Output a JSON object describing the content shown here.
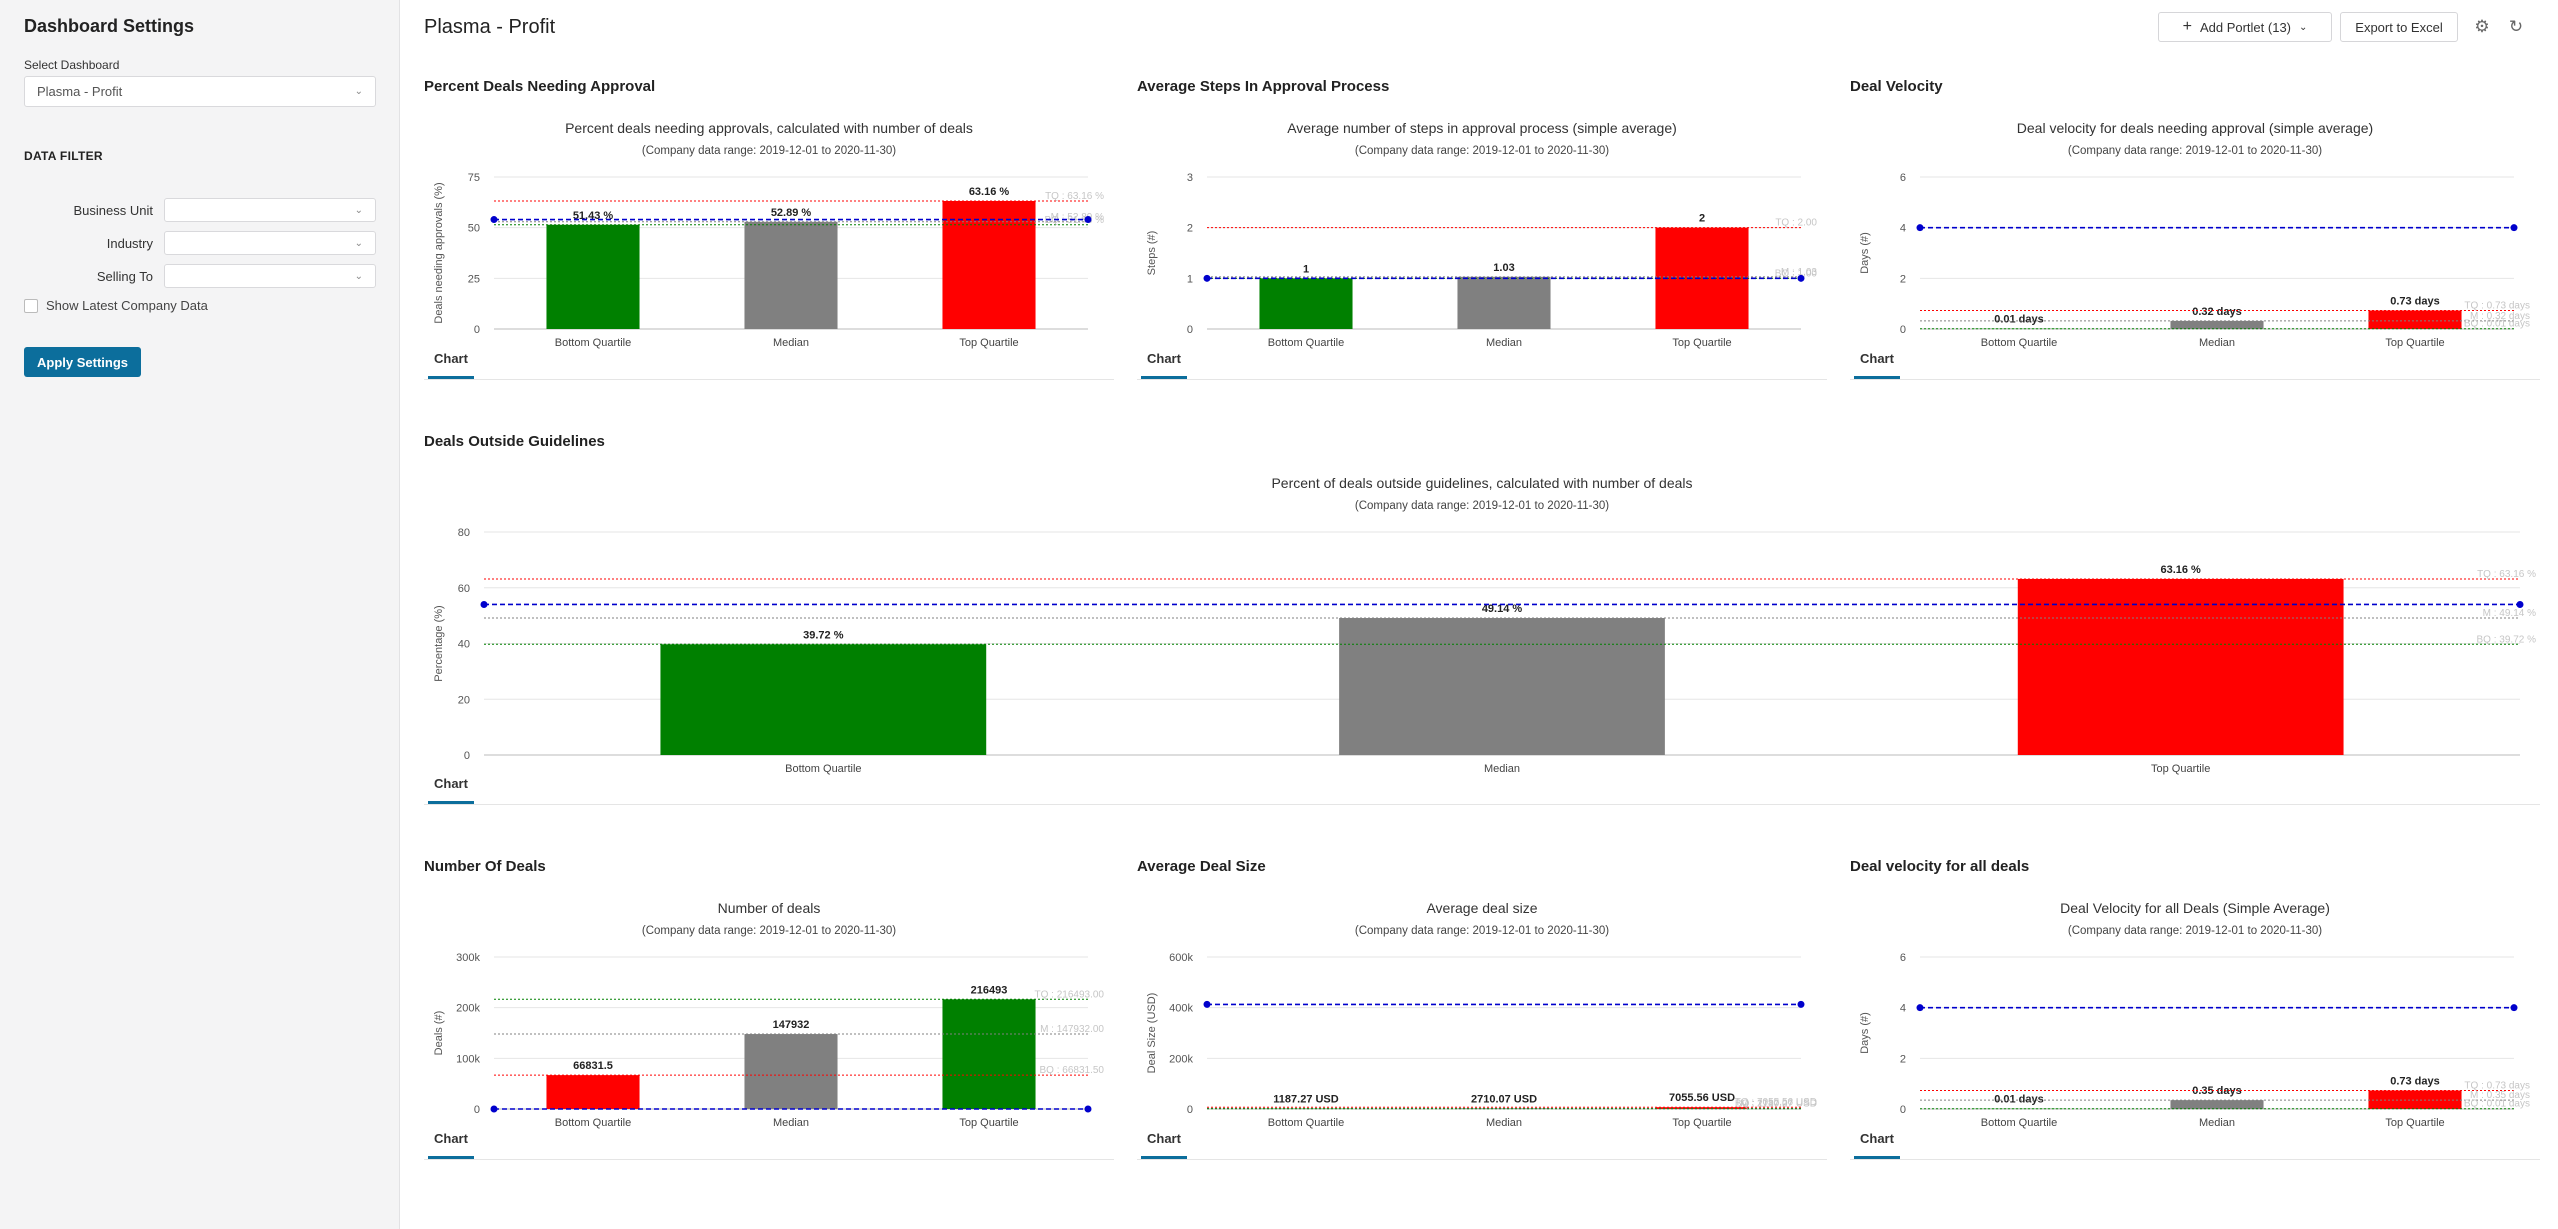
{
  "sidebar": {
    "title": "Dashboard Settings",
    "select_label": "Select Dashboard",
    "select_value": "Plasma - Profit",
    "data_filter_title": "DATA FILTER",
    "filters": [
      {
        "label": "Business Unit",
        "value": ""
      },
      {
        "label": "Industry",
        "value": ""
      },
      {
        "label": "Selling To",
        "value": ""
      }
    ],
    "show_latest_label": "Show Latest Company Data",
    "apply_label": "Apply Settings"
  },
  "header": {
    "title": "Plasma - Profit",
    "add_portlet_label": "Add Portlet (13)",
    "export_label": "Export to Excel",
    "settings_icon": "gear-icon",
    "refresh_icon": "refresh-icon"
  },
  "colors": {
    "green": "#008000",
    "gray": "#808080",
    "red": "#ff0000",
    "blue": "#0000cc"
  },
  "tab_label": "Chart",
  "chart_data": [
    {
      "id": "p1",
      "type": "bar",
      "portlet_title": "Percent Deals Needing Approval",
      "title": "Percent deals needing approvals, calculated with number of deals",
      "subtitle": "(Company data range: 2019-12-01 to 2020-11-30)",
      "ylabel": "Deals needing approvals (%)",
      "ylim": [
        0,
        75
      ],
      "yticks": [
        0,
        25,
        50,
        75
      ],
      "ytick_labels": [
        "0",
        "25",
        "50",
        "75"
      ],
      "categories": [
        "Bottom Quartile",
        "Median",
        "Top Quartile"
      ],
      "values": [
        51.43,
        52.89,
        63.16
      ],
      "value_labels": [
        "51.43 %",
        "52.89 %",
        "63.16 %"
      ],
      "bar_colors": [
        "#008000",
        "#808080",
        "#ff0000"
      ],
      "company": 54.0,
      "ref_lines": [
        {
          "value": 63.16,
          "color": "#ff0000",
          "label": "TQ : 63.16 %"
        },
        {
          "value": 52.89,
          "color": "#808080",
          "label": "M : 52.89 %"
        },
        {
          "value": 51.43,
          "color": "#008000",
          "label": "BQ : 51.43 %"
        }
      ]
    },
    {
      "id": "p2",
      "type": "bar",
      "portlet_title": "Average Steps In Approval Process",
      "title": "Average number of steps in approval process (simple average)",
      "subtitle": "(Company data range: 2019-12-01 to 2020-11-30)",
      "ylabel": "Steps (#)",
      "ylim": [
        0,
        3
      ],
      "yticks": [
        0,
        1,
        2,
        3
      ],
      "ytick_labels": [
        "0",
        "1",
        "2",
        "3"
      ],
      "categories": [
        "Bottom Quartile",
        "Median",
        "Top Quartile"
      ],
      "values": [
        1,
        1.03,
        2
      ],
      "value_labels": [
        "1",
        "1.03",
        "2"
      ],
      "bar_colors": [
        "#008000",
        "#808080",
        "#ff0000"
      ],
      "company": 1.0,
      "ref_lines": [
        {
          "value": 2,
          "color": "#ff0000",
          "label": "TQ : 2.00"
        },
        {
          "value": 1.03,
          "color": "#808080",
          "label": "M : 1.03"
        },
        {
          "value": 1,
          "color": "#008000",
          "label": "BQ : 1.00"
        }
      ]
    },
    {
      "id": "p3",
      "type": "bar",
      "portlet_title": "Deal Velocity",
      "title": "Deal velocity for deals needing approval (simple average)",
      "subtitle": "(Company data range: 2019-12-01 to 2020-11-30)",
      "ylabel": "Days (#)",
      "ylim": [
        0,
        6
      ],
      "yticks": [
        0,
        2,
        4,
        6
      ],
      "ytick_labels": [
        "0",
        "2",
        "4",
        "6"
      ],
      "categories": [
        "Bottom Quartile",
        "Median",
        "Top Quartile"
      ],
      "values": [
        0.01,
        0.32,
        0.73
      ],
      "value_labels": [
        "0.01 days",
        "0.32 days",
        "0.73 days"
      ],
      "bar_colors": [
        "#008000",
        "#808080",
        "#ff0000"
      ],
      "company": 4.0,
      "ref_lines": [
        {
          "value": 0.73,
          "color": "#ff0000",
          "label": "TQ : 0.73 days"
        },
        {
          "value": 0.32,
          "color": "#808080",
          "label": "M : 0.32 days"
        },
        {
          "value": 0.01,
          "color": "#008000",
          "label": "BQ : 0.01 days"
        }
      ]
    },
    {
      "id": "p4",
      "type": "bar",
      "portlet_title": "Deals Outside Guidelines",
      "title": "Percent of deals outside guidelines, calculated with number of deals",
      "subtitle": "(Company data range: 2019-12-01 to 2020-11-30)",
      "ylabel": "Percentage (%)",
      "ylim": [
        0,
        80
      ],
      "yticks": [
        0,
        20,
        40,
        60,
        80
      ],
      "ytick_labels": [
        "0",
        "20",
        "40",
        "60",
        "80"
      ],
      "categories": [
        "Bottom Quartile",
        "Median",
        "Top Quartile"
      ],
      "values": [
        39.72,
        49.14,
        63.16
      ],
      "value_labels": [
        "39.72 %",
        "49.14 %",
        "63.16 %"
      ],
      "bar_colors": [
        "#008000",
        "#808080",
        "#ff0000"
      ],
      "company": 54.0,
      "ref_lines": [
        {
          "value": 63.16,
          "color": "#ff0000",
          "label": "TQ : 63.16 %"
        },
        {
          "value": 49.14,
          "color": "#808080",
          "label": "M : 49.14 %"
        },
        {
          "value": 39.72,
          "color": "#008000",
          "label": "BQ : 39.72 %"
        }
      ]
    },
    {
      "id": "p5",
      "type": "bar",
      "portlet_title": "Number Of Deals",
      "title": "Number of deals",
      "subtitle": "(Company data range: 2019-12-01 to 2020-11-30)",
      "ylabel": "Deals (#)",
      "ylim": [
        0,
        300000
      ],
      "yticks": [
        0,
        100000,
        200000,
        300000
      ],
      "ytick_labels": [
        "0",
        "100k",
        "200k",
        "300k"
      ],
      "categories": [
        "Bottom Quartile",
        "Median",
        "Top Quartile"
      ],
      "values": [
        66831.5,
        147932,
        216493
      ],
      "value_labels": [
        "66831.5",
        "147932",
        "216493"
      ],
      "bar_colors": [
        "#ff0000",
        "#808080",
        "#008000"
      ],
      "company": 0,
      "ref_lines": [
        {
          "value": 216493,
          "color": "#008000",
          "label": "TQ : 216493.00"
        },
        {
          "value": 147932,
          "color": "#808080",
          "label": "M : 147932.00"
        },
        {
          "value": 66831.5,
          "color": "#ff0000",
          "label": "BQ : 66831.50"
        }
      ]
    },
    {
      "id": "p6",
      "type": "bar",
      "portlet_title": "Average Deal Size",
      "title": "Average deal size",
      "subtitle": "(Company data range: 2019-12-01 to 2020-11-30)",
      "ylabel": "Deal Size (USD)",
      "ylim": [
        0,
        600000
      ],
      "yticks": [
        0,
        200000,
        400000,
        600000
      ],
      "ytick_labels": [
        "0",
        "200k",
        "400k",
        "600k"
      ],
      "categories": [
        "Bottom Quartile",
        "Median",
        "Top Quartile"
      ],
      "values": [
        1187.27,
        2710.07,
        7055.56
      ],
      "value_labels": [
        "1187.27 USD",
        "2710.07 USD",
        "7055.56 USD"
      ],
      "bar_colors": [
        "#008000",
        "#808080",
        "#ff0000"
      ],
      "company": 412858,
      "ref_lines": [
        {
          "value": 7055.56,
          "color": "#ff0000",
          "label": "TQ : 7055.56 USD"
        },
        {
          "value": 2710.07,
          "color": "#808080",
          "label": "M : 2710.07 USD"
        },
        {
          "value": 1187.27,
          "color": "#008000",
          "label": "BQ : 1187.27 USD"
        }
      ]
    },
    {
      "id": "p7",
      "type": "bar",
      "portlet_title": "Deal velocity for all deals",
      "title": "Deal Velocity for all Deals (Simple Average)",
      "subtitle": "(Company data range: 2019-12-01 to 2020-11-30)",
      "ylabel": "Days (#)",
      "ylim": [
        0,
        6
      ],
      "yticks": [
        0,
        2,
        4,
        6
      ],
      "ytick_labels": [
        "0",
        "2",
        "4",
        "6"
      ],
      "categories": [
        "Bottom Quartile",
        "Median",
        "Top Quartile"
      ],
      "values": [
        0.01,
        0.35,
        0.73
      ],
      "value_labels": [
        "0.01 days",
        "0.35 days",
        "0.73 days"
      ],
      "bar_colors": [
        "#008000",
        "#808080",
        "#ff0000"
      ],
      "company": 4.0,
      "ref_lines": [
        {
          "value": 0.73,
          "color": "#ff0000",
          "label": "TQ : 0.73 days"
        },
        {
          "value": 0.35,
          "color": "#808080",
          "label": "M : 0.35 days"
        },
        {
          "value": 0.01,
          "color": "#008000",
          "label": "BQ : 0.01 days"
        }
      ]
    }
  ]
}
